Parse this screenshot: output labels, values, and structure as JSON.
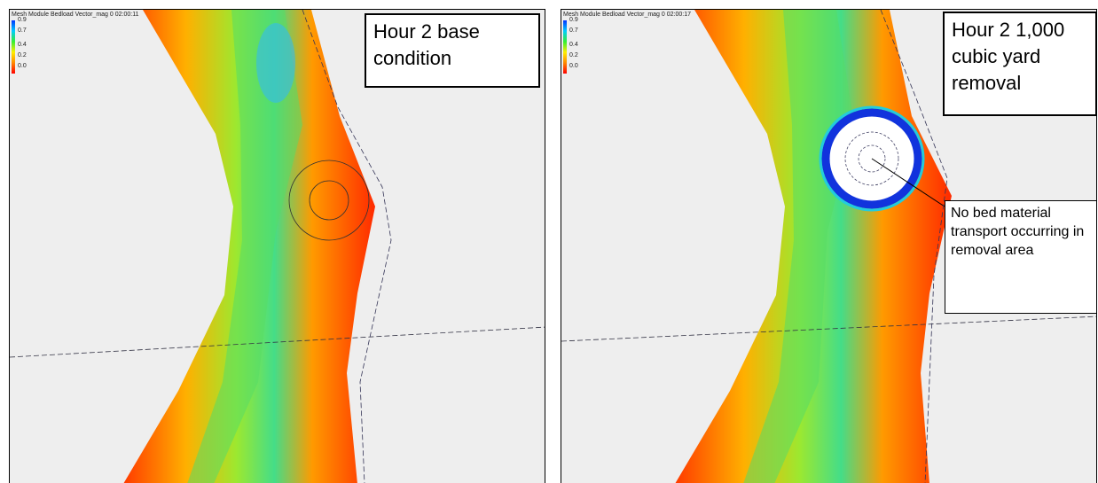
{
  "panels": [
    {
      "header": "Mesh Module Bedload Vector_mag 0 02:00:11",
      "legend": [
        "0.9",
        "0.7",
        "0.4",
        "0.2",
        "0.0"
      ],
      "label": "Hour 2 base condition"
    },
    {
      "header": "Mesh Module Bedload Vector_mag 0 02:00:17",
      "legend": [
        "0.9",
        "0.7",
        "0.4",
        "0.2",
        "0.0"
      ],
      "label": "Hour 2 1,000 cubic yard removal",
      "annotation": "No bed material transport occurring in removal area"
    }
  ]
}
